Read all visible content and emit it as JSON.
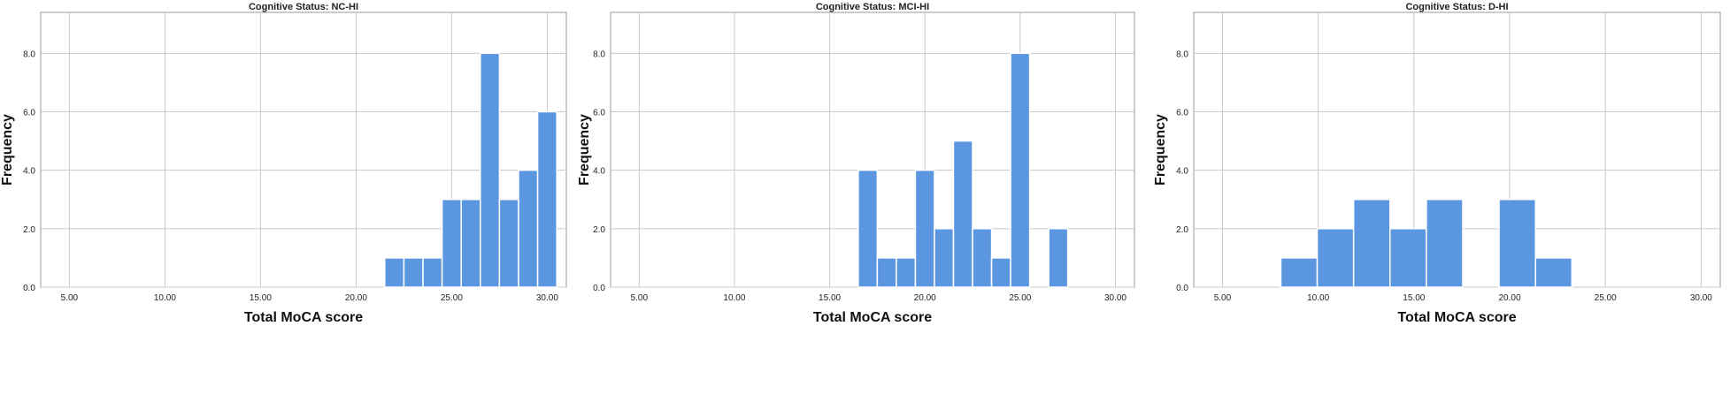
{
  "chart_data": [
    {
      "type": "bar",
      "title": "Cognitive Status: NC-HI",
      "xlabel": "Total MoCA score",
      "ylabel": "Frequency",
      "xlim": [
        3.5,
        31.0
      ],
      "ylim": [
        0,
        9.4
      ],
      "xticks": [
        "5.00",
        "10.00",
        "15.00",
        "20.00",
        "25.00",
        "30.00"
      ],
      "xtick_values": [
        5,
        10,
        15,
        20,
        25,
        30
      ],
      "yticks": [
        "0.0",
        "2.0",
        "4.0",
        "6.0",
        "8.0"
      ],
      "ytick_values": [
        0,
        2,
        4,
        6,
        8
      ],
      "bin_width": 1,
      "bins": [
        {
          "x": 22,
          "value": 1
        },
        {
          "x": 23,
          "value": 1
        },
        {
          "x": 24,
          "value": 1
        },
        {
          "x": 25,
          "value": 3
        },
        {
          "x": 26,
          "value": 3
        },
        {
          "x": 27,
          "value": 8
        },
        {
          "x": 28,
          "value": 3
        },
        {
          "x": 29,
          "value": 4
        },
        {
          "x": 30,
          "value": 6
        }
      ]
    },
    {
      "type": "bar",
      "title": "Cognitive Status: MCI-HI",
      "xlabel": "Total MoCA score",
      "ylabel": "Frequency",
      "xlim": [
        3.5,
        31.0
      ],
      "ylim": [
        0,
        9.4
      ],
      "xticks": [
        "5.00",
        "10.00",
        "15.00",
        "20.00",
        "25.00",
        "30.00"
      ],
      "xtick_values": [
        5,
        10,
        15,
        20,
        25,
        30
      ],
      "yticks": [
        "0.0",
        "2.0",
        "4.0",
        "6.0",
        "8.0"
      ],
      "ytick_values": [
        0,
        2,
        4,
        6,
        8
      ],
      "bin_width": 1,
      "bins": [
        {
          "x": 17,
          "value": 4
        },
        {
          "x": 18,
          "value": 1
        },
        {
          "x": 19,
          "value": 1
        },
        {
          "x": 20,
          "value": 4
        },
        {
          "x": 21,
          "value": 2
        },
        {
          "x": 22,
          "value": 5
        },
        {
          "x": 23,
          "value": 2
        },
        {
          "x": 24,
          "value": 1
        },
        {
          "x": 25,
          "value": 8
        },
        {
          "x": 27,
          "value": 2
        }
      ]
    },
    {
      "type": "bar",
      "title": "Cognitive Status: D-HI",
      "xlabel": "Total MoCA score",
      "ylabel": "Frequency",
      "xlim": [
        3.5,
        31.0
      ],
      "ylim": [
        0,
        9.4
      ],
      "xticks": [
        "5.00",
        "10.00",
        "15.00",
        "20.00",
        "25.00",
        "30.00"
      ],
      "xtick_values": [
        5,
        10,
        15,
        20,
        25,
        30
      ],
      "yticks": [
        "0.0",
        "2.0",
        "4.0",
        "6.0",
        "8.0"
      ],
      "ytick_values": [
        0,
        2,
        4,
        6,
        8
      ],
      "bin_width": 1.9,
      "bins": [
        {
          "x": 9.0,
          "value": 1
        },
        {
          "x": 10.9,
          "value": 2
        },
        {
          "x": 12.8,
          "value": 3
        },
        {
          "x": 14.7,
          "value": 2
        },
        {
          "x": 16.6,
          "value": 3
        },
        {
          "x": 20.4,
          "value": 3
        },
        {
          "x": 22.3,
          "value": 1
        }
      ]
    }
  ]
}
